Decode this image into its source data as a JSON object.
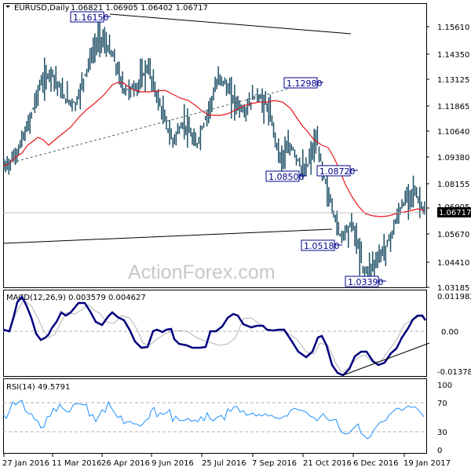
{
  "header": {
    "symbol_label": "EURUSD,Daily",
    "ohlc": "1.06821 1.06905 1.06402 1.06717",
    "open": "1.06821",
    "high": "1.06905",
    "low": "1.06402",
    "close": "1.06717"
  },
  "watermark": "ActionForex.com",
  "colors": {
    "bars": "#1e4f66",
    "ma": "#e8141e",
    "macd_main": "#000080",
    "macd_signal": "#b4b4b4",
    "rsi": "#1e90ff",
    "trendline": "#000000",
    "annotation_border": "#00008b",
    "current_price_bg": "#000000"
  },
  "chart_data": [
    {
      "type": "ohlc",
      "panel": "price",
      "title": "EURUSD,Daily 1.06821 1.06905 1.06402 1.06717",
      "y_ticks": [
        "1.15610",
        "1.14350",
        "1.13125",
        "1.11865",
        "1.10640",
        "1.09380",
        "1.08155",
        "1.06905",
        "1.05670",
        "1.04410",
        "1.03185"
      ],
      "ylim": [
        1.03,
        1.168
      ],
      "current_price": "1.06717",
      "annotations": [
        {
          "label": "1.16150",
          "type": "high",
          "date": "May 2016"
        },
        {
          "label": "1.12980",
          "type": "high",
          "date": "Nov 2016"
        },
        {
          "label": "1.08500",
          "type": "low",
          "date": "Oct 2016"
        },
        {
          "label": "1.08720",
          "type": "high",
          "date": "Nov 2016"
        },
        {
          "label": "1.05180",
          "type": "low",
          "date": "Nov 2016"
        },
        {
          "label": "1.03390",
          "type": "low",
          "date": "Jan 2017"
        }
      ],
      "overlays": [
        "moving average (red)",
        "descending trendline from 1.16150",
        "horizontal support line ~1.060",
        "dotted rising trendline"
      ],
      "approx_closes": [
        1.088,
        1.094,
        1.108,
        1.128,
        1.135,
        1.122,
        1.119,
        1.138,
        1.152,
        1.143,
        1.126,
        1.127,
        1.137,
        1.118,
        1.101,
        1.11,
        1.098,
        1.116,
        1.133,
        1.122,
        1.115,
        1.124,
        1.117,
        1.093,
        1.098,
        1.085,
        1.101,
        1.075,
        1.055,
        1.061,
        1.037,
        1.043,
        1.052,
        1.068,
        1.078,
        1.067
      ]
    },
    {
      "type": "line",
      "panel": "macd",
      "title": "MACD(12,26,9) 0.003579 0.004627",
      "y_ticks": [
        "0.011982",
        "0.00",
        "-0.013788"
      ],
      "ylim": [
        -0.013788,
        0.011982
      ],
      "series": [
        {
          "name": "MACD",
          "values": [
            0.0,
            0.011,
            0.009,
            0.003,
            -0.004,
            -0.001,
            0.006,
            0.0045,
            0.007,
            0.0075,
            0.006,
            0.0035,
            0.002,
            0.005,
            0.0025,
            -0.004,
            -0.0065,
            0.0005,
            -0.001,
            0.0,
            -0.0045,
            -0.0065,
            -0.0055,
            -0.006,
            -0.001,
            0.003,
            0.001,
            0.0005,
            -0.001,
            -0.007,
            -0.002,
            -0.009,
            -0.0135,
            -0.0085,
            -0.0095,
            -0.0085,
            -0.0055,
            0.0005,
            0.006,
            0.007,
            0.004
          ]
        },
        {
          "name": "Signal",
          "values": [
            0.0,
            0.007,
            0.0095,
            0.006,
            0.0,
            -0.002,
            0.003,
            0.0045,
            0.0055,
            0.0068,
            0.0065,
            0.0045,
            0.003,
            0.004,
            0.003,
            -0.001,
            -0.005,
            -0.002,
            -0.001,
            -0.0005,
            -0.003,
            -0.0055,
            -0.0058,
            -0.0062,
            -0.003,
            0.002,
            0.002,
            0.0008,
            0.0,
            -0.005,
            -0.004,
            -0.007,
            -0.012,
            -0.01,
            -0.009,
            -0.0085,
            -0.0065,
            -0.002,
            0.003,
            0.0065,
            0.0046
          ]
        }
      ],
      "trendline": "rising support under MACD lows (Nov 2016 - Jan 2017)"
    },
    {
      "type": "line",
      "panel": "rsi",
      "title": "RSI(14) 49.5791",
      "y_ticks": [
        "100",
        "70",
        "30",
        "0"
      ],
      "ylim": [
        0,
        100
      ],
      "levels": [
        70,
        30
      ],
      "series": [
        {
          "name": "RSI(14)",
          "values": [
            55,
            62,
            71,
            72,
            58,
            54,
            46,
            37,
            47,
            62,
            65,
            58,
            70,
            71,
            57,
            52,
            68,
            57,
            49,
            44,
            38,
            40,
            54,
            61,
            50,
            46,
            38,
            41,
            39,
            38,
            46,
            61,
            67,
            59,
            56,
            62,
            58,
            49,
            44,
            56,
            59,
            40,
            32,
            27,
            33,
            49,
            42,
            36,
            44,
            49,
            62,
            63,
            68,
            66,
            60,
            49.6
          ]
        }
      ]
    }
  ],
  "x_axis": {
    "labels": [
      "27 Jan 2016",
      "11 Mar 2016",
      "26 Apr 2016",
      "9 Jun 2016",
      "25 Jul 2016",
      "7 Sep 2016",
      "21 Oct 2016",
      "6 Dec 2016",
      "19 Jan 2017"
    ]
  },
  "panels": {
    "price": {
      "tick_labels": [
        "1.15610",
        "1.14350",
        "1.13125",
        "1.11865",
        "1.10640",
        "1.09380",
        "1.08155",
        "1.06905",
        "1.05670",
        "1.04410",
        "1.03185"
      ]
    },
    "macd": {
      "label": "MACD(12,26,9) 0.003579 0.004627",
      "tick_labels": [
        "0.011982",
        "0.00",
        "-0.013788"
      ]
    },
    "rsi": {
      "label": "RSI(14) 49.5791",
      "tick_labels": [
        "100",
        "70",
        "30",
        "0"
      ]
    }
  }
}
